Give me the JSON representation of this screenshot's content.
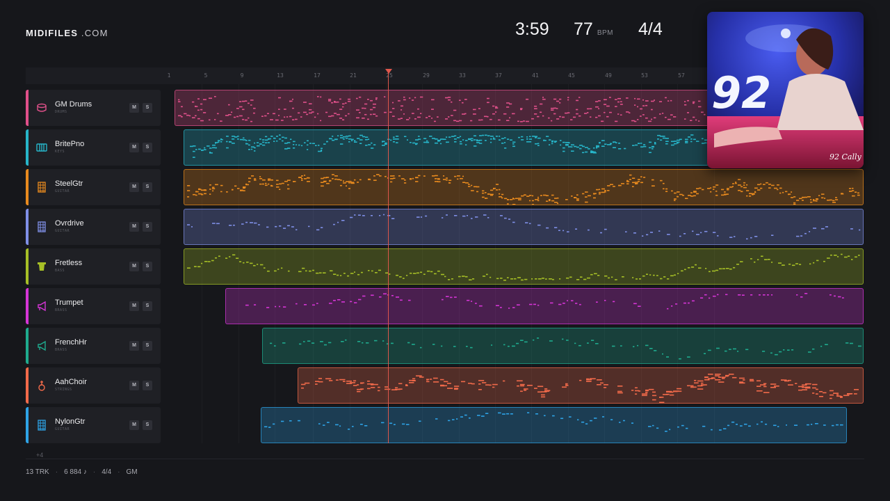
{
  "header": {
    "logo_main": "MIDIFILES",
    "logo_domain": ".COM",
    "duration": "3:59",
    "tempo": "77",
    "tempo_unit": "BPM",
    "time_signature": "4/4"
  },
  "cover": {
    "title_art": "92",
    "signature": "92 Cally"
  },
  "ruler": {
    "bars": [
      "1",
      "5",
      "9",
      "13",
      "17",
      "21",
      "25",
      "29",
      "33",
      "37",
      "41",
      "45",
      "49",
      "53",
      "57"
    ]
  },
  "tracks": [
    {
      "name": "GM Drums",
      "category": "DRUMS",
      "color": "#e0508a",
      "icon": "drum-icon",
      "mute": "M",
      "solo": "S"
    },
    {
      "name": "BritePno",
      "category": "KEYS",
      "color": "#27b5c9",
      "icon": "keys-icon",
      "mute": "M",
      "solo": "S"
    },
    {
      "name": "SteelGtr",
      "category": "GUITAR",
      "color": "#e88a1e",
      "icon": "guitar-fretboard-icon",
      "mute": "M",
      "solo": "S"
    },
    {
      "name": "Ovrdrive",
      "category": "GUITAR",
      "color": "#7f8fe6",
      "icon": "guitar-fretboard-icon",
      "mute": "M",
      "solo": "S"
    },
    {
      "name": "Fretless",
      "category": "BASS",
      "color": "#a6bf26",
      "icon": "bass-icon",
      "mute": "M",
      "solo": "S"
    },
    {
      "name": "Trumpet",
      "category": "BRASS",
      "color": "#d535d6",
      "icon": "horn-icon",
      "mute": "M",
      "solo": "S"
    },
    {
      "name": "FrenchHr",
      "category": "BRASS",
      "color": "#1fab8e",
      "icon": "horn-icon",
      "mute": "M",
      "solo": "S"
    },
    {
      "name": "AahChoir",
      "category": "STRINGS",
      "color": "#f26a4a",
      "icon": "violin-icon",
      "mute": "M",
      "solo": "S"
    },
    {
      "name": "NylonGtr",
      "category": "GUITAR",
      "color": "#2ea3e6",
      "icon": "guitar-fretboard-icon",
      "mute": "M",
      "solo": "S"
    }
  ],
  "more_tracks": "+4",
  "footer": {
    "tracks": "13 TRK",
    "notes": "6 884 ♪",
    "time_signature": "4/4",
    "standard": "GM"
  }
}
